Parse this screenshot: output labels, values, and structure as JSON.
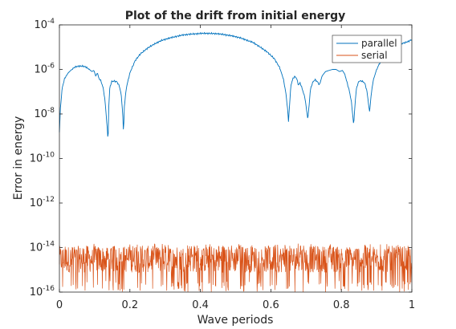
{
  "chart_data": {
    "type": "line",
    "title": "Plot of the drift from initial energy",
    "xlabel": "Wave periods",
    "ylabel": "Error in energy",
    "xlim": [
      0,
      1
    ],
    "ylim": [
      1e-16,
      0.0001
    ],
    "yscale": "log",
    "xticks": [
      0,
      0.2,
      0.4,
      0.6,
      0.8,
      1
    ],
    "xtick_labels": [
      "0",
      "0.2",
      "0.4",
      "0.6",
      "0.8",
      "1"
    ],
    "yticks": [
      {
        "value": 1e-16,
        "base": "10",
        "exp": "-16"
      },
      {
        "value": 1e-14,
        "base": "10",
        "exp": "-14"
      },
      {
        "value": 1e-12,
        "base": "10",
        "exp": "-12"
      },
      {
        "value": 1e-10,
        "base": "10",
        "exp": "-10"
      },
      {
        "value": 1e-08,
        "base": "10",
        "exp": "-8"
      },
      {
        "value": 1e-06,
        "base": "10",
        "exp": "-6"
      },
      {
        "value": 0.0001,
        "base": "10",
        "exp": "-4"
      }
    ],
    "grid": false,
    "legend_position": "top-right",
    "series": [
      {
        "name": "parallel",
        "color": "#0072BD",
        "points": [
          [
            0,
            1.5e-09
          ],
          [
            0.003,
            2e-08
          ],
          [
            0.008,
            1.5e-07
          ],
          [
            0.015,
            4e-07
          ],
          [
            0.025,
            7e-07
          ],
          [
            0.035,
            1e-06
          ],
          [
            0.045,
            1.3e-06
          ],
          [
            0.055,
            1.4e-06
          ],
          [
            0.065,
            1.4e-06
          ],
          [
            0.075,
            1.3e-06
          ],
          [
            0.085,
            1e-06
          ],
          [
            0.092,
            8e-07
          ],
          [
            0.098,
            9e-07
          ],
          [
            0.103,
            5e-07
          ],
          [
            0.108,
            7e-07
          ],
          [
            0.112,
            4e-07
          ],
          [
            0.118,
            3e-07
          ],
          [
            0.124,
            1.5e-07
          ],
          [
            0.128,
            6e-08
          ],
          [
            0.131,
            2e-08
          ],
          [
            0.134,
            5e-09
          ],
          [
            0.136,
            2e-09
          ],
          [
            0.138,
            5e-10
          ],
          [
            0.14,
            2e-08
          ],
          [
            0.143,
            1.5e-07
          ],
          [
            0.148,
            2.8e-07
          ],
          [
            0.155,
            3e-07
          ],
          [
            0.163,
            2.8e-07
          ],
          [
            0.17,
            1.8e-07
          ],
          [
            0.175,
            8e-08
          ],
          [
            0.179,
            1.5e-08
          ],
          [
            0.181,
            3e-09
          ],
          [
            0.182,
            1.2e-09
          ],
          [
            0.184,
            2e-08
          ],
          [
            0.19,
            1.5e-07
          ],
          [
            0.2,
            7e-07
          ],
          [
            0.215,
            2.5e-06
          ],
          [
            0.23,
            5e-06
          ],
          [
            0.25,
            9e-06
          ],
          [
            0.27,
            1.4e-05
          ],
          [
            0.29,
            2e-05
          ],
          [
            0.31,
            2.5e-05
          ],
          [
            0.33,
            3e-05
          ],
          [
            0.35,
            3.5e-05
          ],
          [
            0.37,
            3.8e-05
          ],
          [
            0.39,
            4e-05
          ],
          [
            0.41,
            4.2e-05
          ],
          [
            0.43,
            4.1e-05
          ],
          [
            0.45,
            4e-05
          ],
          [
            0.47,
            3.6e-05
          ],
          [
            0.49,
            3.2e-05
          ],
          [
            0.51,
            2.7e-05
          ],
          [
            0.53,
            2.1e-05
          ],
          [
            0.55,
            1.6e-05
          ],
          [
            0.57,
            1e-05
          ],
          [
            0.59,
            6e-06
          ],
          [
            0.61,
            3e-06
          ],
          [
            0.625,
            1.2e-06
          ],
          [
            0.635,
            4e-07
          ],
          [
            0.642,
            1e-07
          ],
          [
            0.647,
            2e-08
          ],
          [
            0.65,
            4.5e-09
          ],
          [
            0.652,
            1.5e-08
          ],
          [
            0.657,
            2e-07
          ],
          [
            0.663,
            4e-07
          ],
          [
            0.668,
            4.8e-07
          ],
          [
            0.673,
            4e-07
          ],
          [
            0.678,
            2e-07
          ],
          [
            0.683,
            2.5e-07
          ],
          [
            0.69,
            1.2e-07
          ],
          [
            0.697,
            5e-08
          ],
          [
            0.702,
            1.2e-08
          ],
          [
            0.705,
            6e-09
          ],
          [
            0.708,
            2e-08
          ],
          [
            0.712,
            1.2e-07
          ],
          [
            0.718,
            2.5e-07
          ],
          [
            0.725,
            3.5e-07
          ],
          [
            0.732,
            2.8e-07
          ],
          [
            0.738,
            2e-07
          ],
          [
            0.745,
            5e-07
          ],
          [
            0.755,
            8e-07
          ],
          [
            0.765,
            9e-07
          ],
          [
            0.775,
            1e-06
          ],
          [
            0.785,
            1e-06
          ],
          [
            0.795,
            8e-07
          ],
          [
            0.803,
            9e-07
          ],
          [
            0.81,
            6e-07
          ],
          [
            0.815,
            3e-07
          ],
          [
            0.822,
            1.2e-07
          ],
          [
            0.828,
            4e-08
          ],
          [
            0.832,
            1e-08
          ],
          [
            0.835,
            3e-09
          ],
          [
            0.838,
            2e-08
          ],
          [
            0.843,
            1.5e-07
          ],
          [
            0.85,
            3e-07
          ],
          [
            0.858,
            3e-07
          ],
          [
            0.866,
            2.5e-07
          ],
          [
            0.872,
            1.2e-07
          ],
          [
            0.877,
            3e-08
          ],
          [
            0.88,
            1.2e-08
          ],
          [
            0.884,
            6e-08
          ],
          [
            0.89,
            3e-07
          ],
          [
            0.9,
            1e-06
          ],
          [
            0.915,
            3e-06
          ],
          [
            0.93,
            6e-06
          ],
          [
            0.945,
            9e-06
          ],
          [
            0.96,
            1.2e-05
          ],
          [
            0.975,
            1.5e-05
          ],
          [
            0.99,
            1.8e-05
          ],
          [
            1,
            2.2e-05
          ]
        ]
      },
      {
        "name": "serial",
        "color": "#D95319",
        "x_range": [
          0,
          1
        ],
        "band_low": 1e-16,
        "band_typical": 3e-15,
        "band_high": 1.5e-14
      }
    ]
  }
}
